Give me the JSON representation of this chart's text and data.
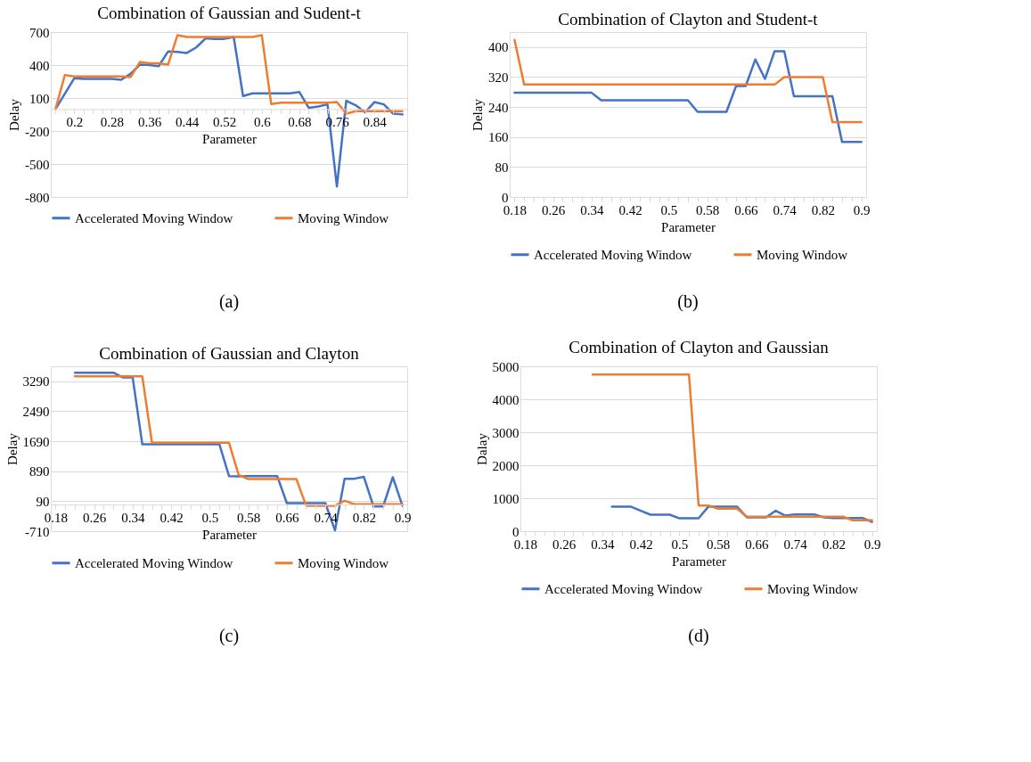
{
  "chart_data": [
    {
      "type": "line",
      "title": "Combination of Gaussian and Sudent-t",
      "xlabel": "Parameter",
      "ylabel": "Delay",
      "categories": [
        null,
        null,
        "0.2",
        null,
        null,
        null,
        "0.28",
        null,
        null,
        null,
        "0.36",
        null,
        null,
        null,
        "0.44",
        null,
        null,
        null,
        "0.52",
        null,
        null,
        null,
        "0.6",
        null,
        null,
        null,
        "0.68",
        null,
        null,
        null,
        "0.76",
        null,
        null,
        null,
        "0.84",
        null,
        null,
        null
      ],
      "series": [
        {
          "name": "Accelerated Moving Window",
          "color": "#4472c4",
          "values": [
            0,
            140,
            280,
            275,
            275,
            275,
            275,
            266,
            320,
            404,
            400,
            390,
            523,
            519,
            510,
            560,
            643,
            638,
            638,
            655,
            118,
            142,
            142,
            142,
            142,
            142,
            154,
            11,
            23,
            42,
            -705,
            75,
            35,
            -30,
            63,
            42,
            -42,
            -49
          ]
        },
        {
          "name": "Moving Window",
          "color": "#ed7d31",
          "values": [
            0,
            309,
            297,
            297,
            297,
            297,
            297,
            297,
            290,
            428,
            416,
            416,
            404,
            671,
            655,
            655,
            655,
            655,
            655,
            655,
            655,
            655,
            671,
            46,
            58,
            58,
            58,
            58,
            58,
            58,
            63,
            -42,
            -20,
            -20,
            -20,
            -20,
            -20,
            -20
          ]
        }
      ],
      "ylim": [
        -800,
        700
      ],
      "yticks": [
        -800,
        -500,
        -200,
        100,
        400,
        700
      ],
      "grid": "y",
      "legend": "bottom",
      "annotations": [
        "(a)"
      ]
    },
    {
      "type": "line",
      "title": "Combination of Clayton and Student-t",
      "xlabel": "Parameter",
      "ylabel": "Delay",
      "categories": [
        "0.18",
        null,
        null,
        null,
        "0.26",
        null,
        null,
        null,
        "0.34",
        null,
        null,
        null,
        "0.42",
        null,
        null,
        null,
        "0.5",
        null,
        null,
        null,
        "0.58",
        null,
        null,
        null,
        "0.66",
        null,
        null,
        null,
        "0.74",
        null,
        null,
        null,
        "0.82",
        null,
        null,
        null,
        "0.9"
      ],
      "series": [
        {
          "name": "Accelerated Moving Window",
          "color": "#4472c4",
          "values": [
            278,
            278,
            278,
            278,
            278,
            278,
            278,
            278,
            278,
            258,
            258,
            258,
            258,
            258,
            258,
            258,
            258,
            258,
            258,
            227,
            227,
            227,
            227,
            296,
            296,
            367,
            315,
            389,
            389,
            269,
            269,
            269,
            269,
            269,
            147,
            147,
            147
          ]
        },
        {
          "name": "Moving Window",
          "color": "#ed7d31",
          "values": [
            419,
            300,
            300,
            300,
            300,
            300,
            300,
            300,
            300,
            300,
            300,
            300,
            300,
            300,
            300,
            300,
            300,
            300,
            300,
            300,
            300,
            300,
            300,
            300,
            300,
            300,
            300,
            300,
            320,
            320,
            320,
            320,
            320,
            200,
            200,
            200,
            200
          ]
        }
      ],
      "ylim": [
        0,
        440
      ],
      "yticks": [
        0,
        80,
        160,
        240,
        320,
        400
      ],
      "grid": "y",
      "legend": "bottom",
      "annotations": [
        "(b)"
      ]
    },
    {
      "type": "line",
      "title": "Combination of Gaussian and Clayton",
      "xlabel": "Parameter",
      "ylabel": "Delay",
      "categories": [
        "0.18",
        null,
        null,
        null,
        "0.26",
        null,
        null,
        null,
        "0.34",
        null,
        null,
        null,
        "0.42",
        null,
        null,
        null,
        "0.5",
        null,
        null,
        null,
        "0.58",
        null,
        null,
        null,
        "0.66",
        null,
        null,
        null,
        "0.74",
        null,
        null,
        null,
        "0.82",
        null,
        null,
        null,
        "0.9"
      ],
      "series": [
        {
          "name": "Accelerated Moving Window",
          "color": "#4472c4",
          "values": [
            null,
            null,
            3520,
            3520,
            3520,
            3520,
            3520,
            3390,
            3390,
            1610,
            1610,
            1610,
            1610,
            1610,
            1610,
            1610,
            1610,
            1610,
            760,
            750,
            760,
            760,
            760,
            760,
            40,
            40,
            40,
            40,
            40,
            -690,
            690,
            690,
            740,
            -50,
            -50,
            730,
            -30
          ]
        },
        {
          "name": "Moving Window",
          "color": "#ed7d31",
          "values": [
            null,
            null,
            3420,
            3420,
            3420,
            3420,
            3420,
            3420,
            3420,
            3420,
            1650,
            1650,
            1650,
            1650,
            1650,
            1650,
            1650,
            1650,
            1650,
            790,
            680,
            680,
            680,
            680,
            680,
            680,
            -30,
            -30,
            -30,
            -30,
            100,
            10,
            10,
            10,
            10,
            10,
            10
          ]
        }
      ],
      "ylim": [
        -710,
        3690
      ],
      "yticks": [
        -710,
        90,
        890,
        1690,
        2490,
        3290
      ],
      "grid": "y",
      "legend": "bottom",
      "annotations": [
        "(c)"
      ]
    },
    {
      "type": "line",
      "title": "Combination of Clayton and Gaussian",
      "xlabel": "Parameter",
      "ylabel": "Dalay",
      "categories": [
        "0.18",
        null,
        null,
        null,
        "0.26",
        null,
        null,
        null,
        "0.34",
        null,
        null,
        null,
        "0.42",
        null,
        null,
        null,
        "0.5",
        null,
        null,
        null,
        "0.58",
        null,
        null,
        null,
        "0.66",
        null,
        null,
        null,
        "0.74",
        null,
        null,
        null,
        "0.82",
        null,
        null,
        null,
        "0.9"
      ],
      "series": [
        {
          "name": "Accelerated Moving Window",
          "color": "#4472c4",
          "values": [
            null,
            null,
            null,
            null,
            null,
            null,
            null,
            null,
            null,
            740,
            740,
            740,
            620,
            500,
            500,
            500,
            390,
            390,
            390,
            740,
            740,
            740,
            740,
            420,
            420,
            420,
            620,
            470,
            510,
            510,
            510,
            420,
            400,
            400,
            400,
            400,
            280
          ]
        },
        {
          "name": "Moving Window",
          "color": "#ed7d31",
          "values": [
            null,
            null,
            null,
            null,
            null,
            null,
            null,
            4750,
            4750,
            4750,
            4750,
            4750,
            4750,
            4750,
            4750,
            4750,
            4750,
            4750,
            780,
            780,
            680,
            680,
            680,
            440,
            440,
            440,
            440,
            440,
            440,
            440,
            440,
            440,
            440,
            440,
            330,
            330,
            330
          ]
        }
      ],
      "ylim": [
        0,
        5000
      ],
      "yticks": [
        0,
        1000,
        2000,
        3000,
        4000,
        5000
      ],
      "grid": "y",
      "legend": "bottom",
      "annotations": [
        "(d)"
      ]
    }
  ]
}
